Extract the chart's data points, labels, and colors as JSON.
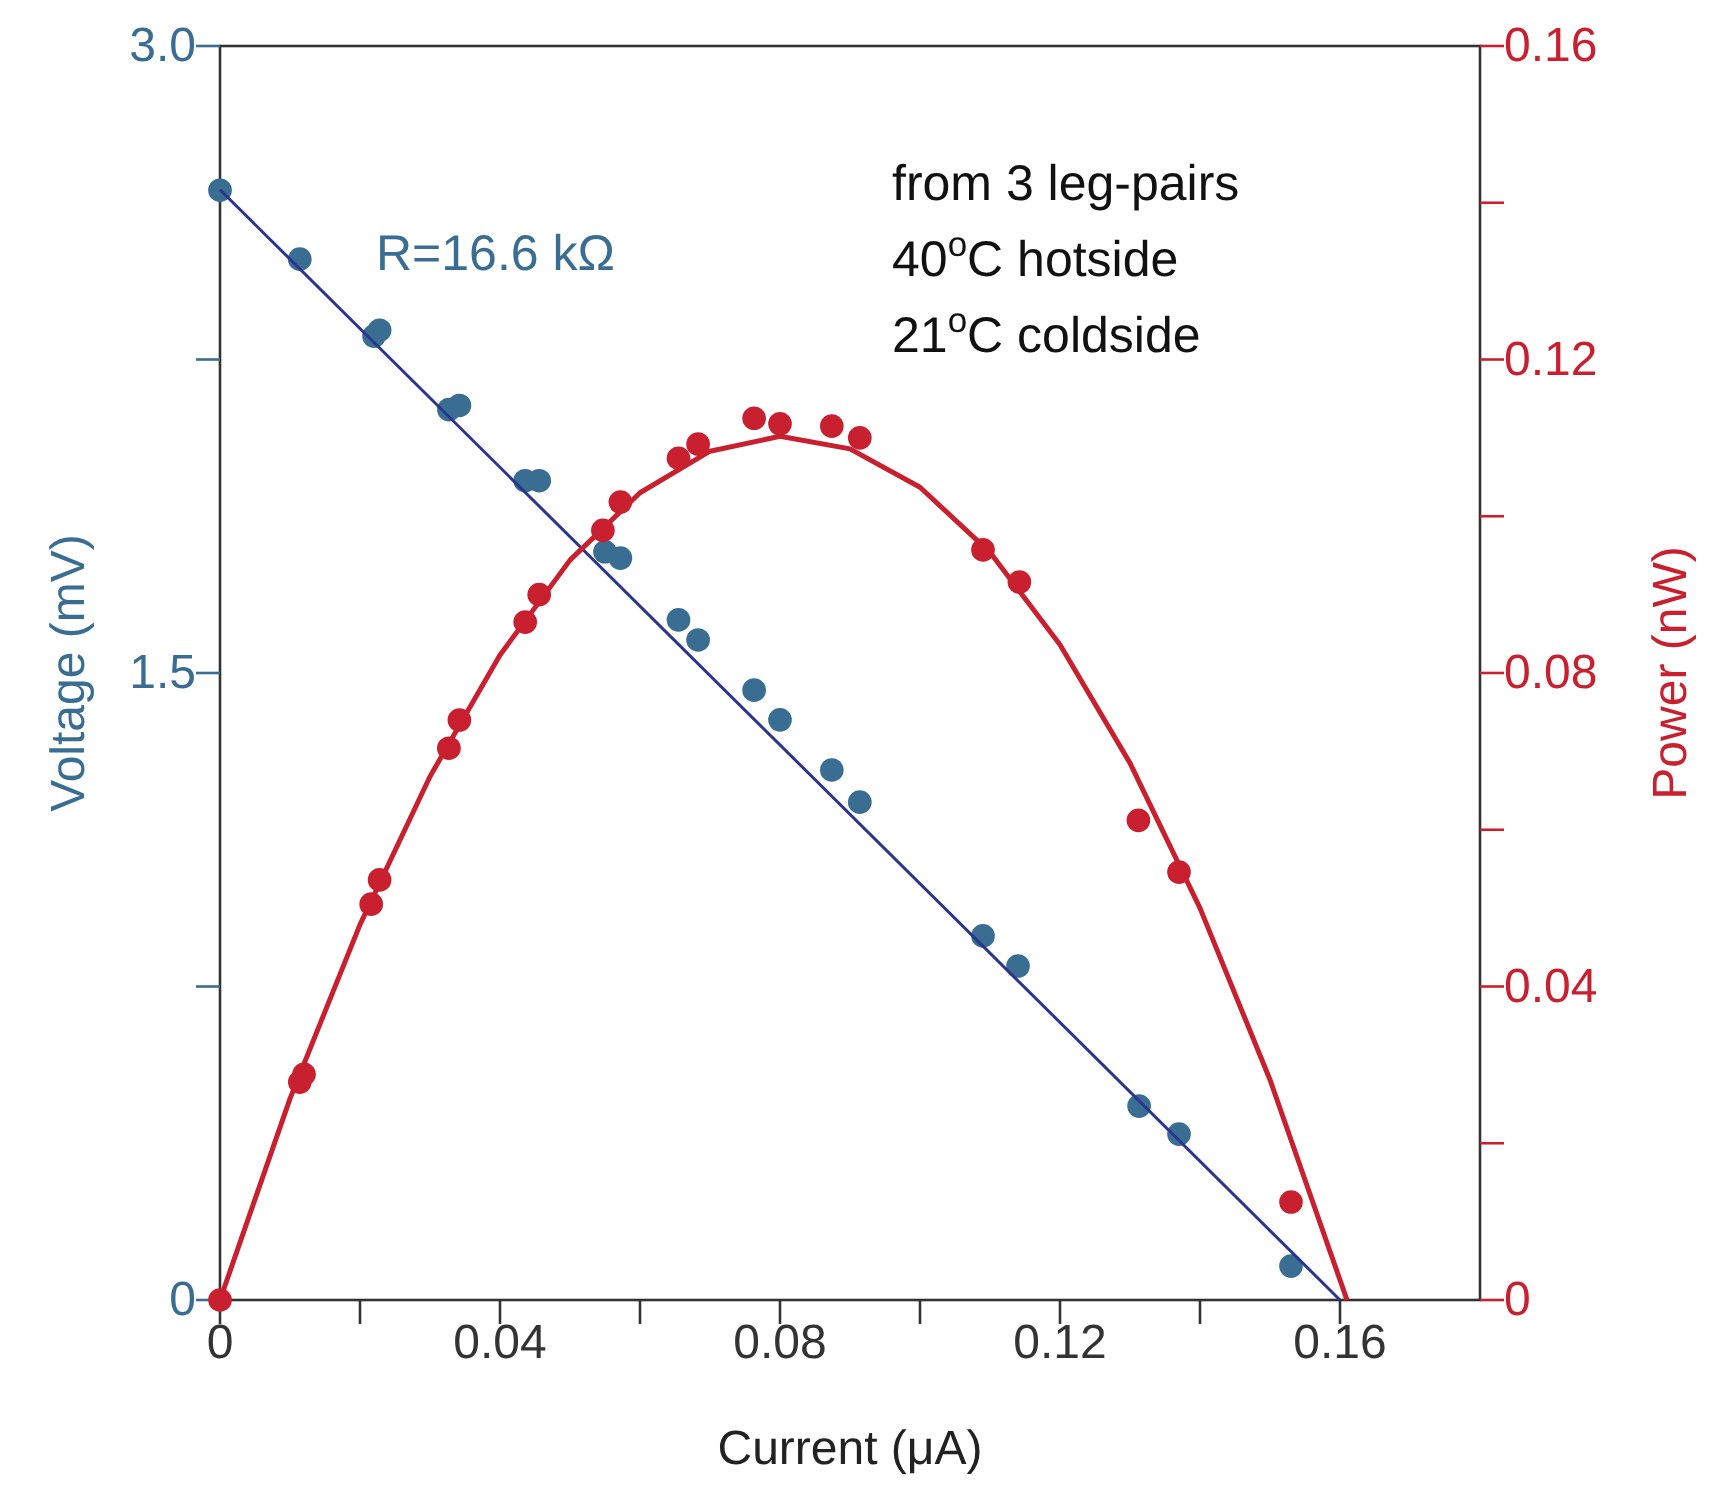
{
  "chart_data": {
    "type": "scatter",
    "xlabel": "Current (μA)",
    "ylabel": "Voltage (mV)",
    "y2label": "Power (nW)",
    "xlim": [
      0,
      0.18
    ],
    "xticks": [
      0,
      {
        "value": 0.02,
        "label": null
      },
      0.04,
      {
        "value": 0.06,
        "label": null
      },
      0.08,
      {
        "value": 0.1,
        "label": null
      },
      0.12,
      {
        "value": 0.14,
        "label": null
      },
      0.16
    ],
    "ylim": [
      0,
      3
    ],
    "yticks": [
      0,
      {
        "value": 0.75,
        "label": null
      },
      1.5,
      {
        "value": 2.25,
        "label": null
      },
      {
        "value": 3,
        "label": "3.0"
      }
    ],
    "y2lim": [
      0,
      0.16
    ],
    "y2ticks": [
      0,
      {
        "value": 0.02,
        "label": null
      },
      0.04,
      {
        "value": 0.06,
        "label": null
      },
      0.08,
      {
        "value": 0.1,
        "label": null
      },
      0.12,
      {
        "value": 0.14,
        "label": null
      },
      0.16
    ],
    "grid": false,
    "marker": "circle",
    "annotations": [
      "R=16.6 kΩ",
      "from 3 leg-pairs",
      "40$^{o}$C hotside",
      "21$^{o}$C coldside"
    ],
    "series": [
      {
        "type": "scatter",
        "axis": "y",
        "color": "#3a6d92",
        "x": [
          0,
          0.0114,
          0.022,
          0.0228,
          0.0327,
          0.0342,
          0.0436,
          0.0456,
          0.055,
          0.0572,
          0.0655,
          0.0683,
          0.0763,
          0.08,
          0.0874,
          0.0914,
          0.109,
          0.114,
          0.1313,
          0.137,
          0.153
        ],
        "values": [
          2.655,
          2.49,
          2.306,
          2.32,
          2.13,
          2.14,
          1.96,
          1.96,
          1.79,
          1.775,
          1.627,
          1.579,
          1.459,
          1.388,
          1.268,
          1.191,
          0.871,
          0.799,
          0.464,
          0.397,
          0.081
        ]
      },
      {
        "type": "line",
        "axis": "y",
        "color": "#2a3590",
        "marker": "none",
        "x": [
          0,
          0.16
        ],
        "values": [
          2.656,
          0
        ]
      },
      {
        "type": "scatter",
        "axis": "y2",
        "color": "#c8202f",
        "x": [
          0,
          0.0114,
          0.012,
          0.0216,
          0.0228,
          0.0327,
          0.0342,
          0.0436,
          0.0456,
          0.0547,
          0.0572,
          0.0655,
          0.0683,
          0.0763,
          0.08,
          0.0874,
          0.0914,
          0.109,
          0.1142,
          0.1312,
          0.137,
          0.153
        ],
        "values": [
          0,
          0.0278,
          0.0288,
          0.0505,
          0.0536,
          0.0704,
          0.074,
          0.0865,
          0.09,
          0.0982,
          0.1018,
          0.1074,
          0.1092,
          0.1125,
          0.1118,
          0.1115,
          0.11,
          0.0957,
          0.0916,
          0.0612,
          0.0546,
          0.0125
        ]
      },
      {
        "type": "line",
        "axis": "y2",
        "color": "#c8202f",
        "marker": "none",
        "x": [
          0,
          0.01,
          0.02,
          0.03,
          0.04,
          0.05,
          0.06,
          0.07,
          0.08,
          0.09,
          0.1,
          0.11,
          0.12,
          0.13,
          0.14,
          0.15,
          0.161
        ],
        "values": [
          0,
          0.0257,
          0.0479,
          0.0668,
          0.0823,
          0.0944,
          0.103,
          0.1083,
          0.1102,
          0.1086,
          0.1037,
          0.0954,
          0.0836,
          0.0685,
          0.05,
          0.0281,
          0
        ]
      }
    ]
  }
}
